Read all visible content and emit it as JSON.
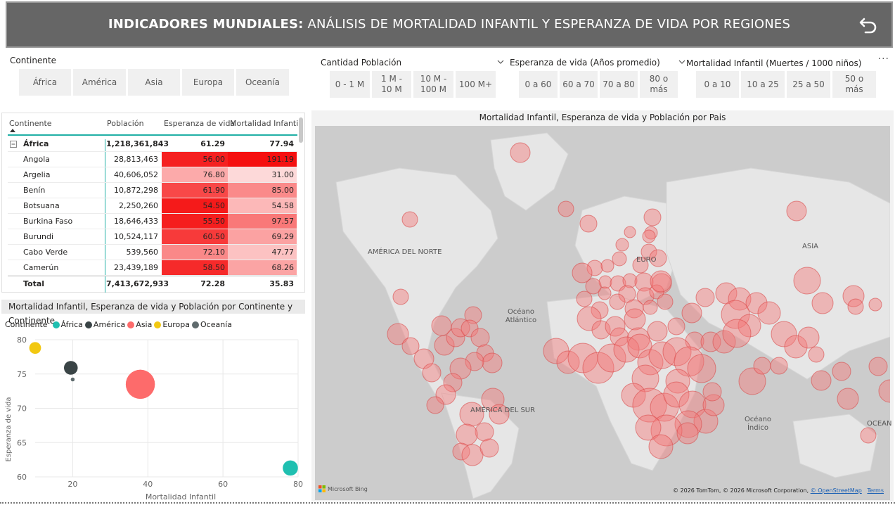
{
  "header": {
    "title_bold": "INDICADORES MUNDIALES:",
    "title_rest": " ANÁLISIS DE MORTALIDAD INFANTIL Y ESPERANZA DE VIDA POR REGIONES",
    "back_icon": "back-arrow-icon"
  },
  "slicers": {
    "continente": {
      "title": "Continente",
      "options": [
        "África",
        "América",
        "Asia",
        "Europa",
        "Oceanía"
      ]
    },
    "poblacion": {
      "title": "Cantidad Población",
      "options": [
        "0 - 1 M",
        "1 M - 10 M",
        "10 M - 100 M",
        "100 M+"
      ]
    },
    "esperanza": {
      "title": "Esperanza de vida (Años promedio)",
      "options": [
        "0 a 60",
        "60 a 70",
        "70 a 80",
        "80 o más"
      ]
    },
    "mortalidad": {
      "title": "Mortalidad Infantil (Muertes / 1000 niños)",
      "options": [
        "0 a 10",
        "10 a 25",
        "25 a 50",
        "50 o más"
      ]
    }
  },
  "more_options": "...",
  "table": {
    "headers": [
      "Continente",
      "Población",
      "Esperanza de vida",
      "Mortalidad Infantil"
    ],
    "group": {
      "name": "África",
      "poblacion": "1,218,361,843",
      "vida": "61.29",
      "mortalidad": "77.94"
    },
    "rows": [
      {
        "name": "Angola",
        "poblacion": "28,813,463",
        "vida": "56.00",
        "mortalidad": "191.19",
        "vida_color": "#f52020",
        "mort_color": "#f51010"
      },
      {
        "name": "Argelia",
        "poblacion": "40,606,052",
        "vida": "76.80",
        "mortalidad": "31.00",
        "vida_color": "#fcaaaa",
        "mort_color": "#fdd9d9"
      },
      {
        "name": "Benín",
        "poblacion": "10,872,298",
        "vida": "61.90",
        "mortalidad": "85.00",
        "vida_color": "#f84848",
        "mort_color": "#fa8a8a"
      },
      {
        "name": "Botsuana",
        "poblacion": "2,250,260",
        "vida": "54.50",
        "mortalidad": "54.58",
        "vida_color": "#f51a1a",
        "mort_color": "#fcb8b8"
      },
      {
        "name": "Burkina Faso",
        "poblacion": "18,646,433",
        "vida": "55.50",
        "mortalidad": "97.57",
        "vida_color": "#f51e1e",
        "mort_color": "#f97878"
      },
      {
        "name": "Burundi",
        "poblacion": "10,524,117",
        "vida": "60.50",
        "mortalidad": "69.29",
        "vida_color": "#f73a3a",
        "mort_color": "#fba2a2"
      },
      {
        "name": "Cabo Verde",
        "poblacion": "539,560",
        "vida": "72.10",
        "mortalidad": "47.77",
        "vida_color": "#fa8888",
        "mort_color": "#fcc2c2"
      },
      {
        "name": "Camerún",
        "poblacion": "23,439,189",
        "vida": "58.50",
        "mortalidad": "68.26",
        "vida_color": "#f62a2a",
        "mort_color": "#fba4a4"
      }
    ],
    "total": {
      "name": "Total",
      "poblacion": "7,413,672,933",
      "vida": "72.28",
      "mortalidad": "35.83"
    }
  },
  "bubble_chart": {
    "title": "Mortalidad Infantil, Esperanza de vida y Población por Continente y Continente",
    "legend_title": "Continente",
    "x_title": "Mortalidad Infantil",
    "y_title": "Esperanza de vida",
    "chart_data": {
      "type": "scatter",
      "title": "Mortalidad Infantil, Esperanza de vida y Población por Continente y Continente",
      "xlabel": "Mortalidad Infantil",
      "ylabel": "Esperanza de vida",
      "xlim": [
        10,
        80
      ],
      "ylim": [
        60,
        80
      ],
      "x_ticks": [
        "20",
        "40",
        "60",
        "80"
      ],
      "y_ticks": [
        "80",
        "75",
        "70",
        "65",
        "60"
      ],
      "legend_position": "top-left",
      "series": [
        {
          "name": "África",
          "color": "#1fbfb0",
          "x": 77.94,
          "y": 61.29,
          "size": 1218361843
        },
        {
          "name": "América",
          "color": "#3a4446",
          "x": 19.5,
          "y": 75.9,
          "size": 1000000000
        },
        {
          "name": "Asia",
          "color": "#fd6b6b",
          "x": 38.0,
          "y": 73.5,
          "size": 4400000000
        },
        {
          "name": "Europa",
          "color": "#f2c811",
          "x": 10.0,
          "y": 78.8,
          "size": 740000000
        },
        {
          "name": "Oceanía",
          "color": "#5f6b6d",
          "x": 20.0,
          "y": 74.2,
          "size": 40000000
        }
      ]
    }
  },
  "map": {
    "title": "Mortalidad Infantil, Esperanza de vida y Población por Pais",
    "labels": {
      "norte": "AMÉRICA DEL NORTE",
      "sur": "AMÉRICA DEL SUR",
      "atlantico": "Océano Atlántico",
      "indico": "Océano Índico",
      "asia": "ASIA",
      "europa": "EURO",
      "oceania": "OCEAN"
    },
    "bing_label": "Microsoft Bing",
    "attribution": "© 2026 TomTom, © 2026 Microsoft Corporation, ",
    "osm_link": "© OpenStreetMap",
    "terms_link": "Terms",
    "bubble_fill": "#f47a7a",
    "bubble_stroke": "#d94a4a"
  }
}
